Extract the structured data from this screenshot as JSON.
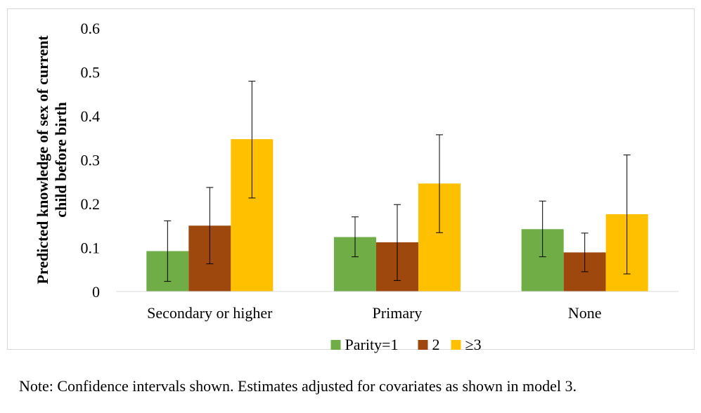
{
  "chart_data": {
    "type": "bar",
    "title": "",
    "xlabel": "",
    "ylabel": [
      "Predicted knowledge of sex of current",
      "child before birth"
    ],
    "ylim": [
      0,
      0.6
    ],
    "yticks": [
      "0",
      "0.1",
      "0.2",
      "0.3",
      "0.4",
      "0.5",
      "0.6"
    ],
    "categories": [
      "Secondary or higher",
      "Primary",
      "None"
    ],
    "series": [
      {
        "name": "Parity=1",
        "color": "#70ad47",
        "values": [
          0.092,
          0.124,
          0.142
        ],
        "lower": [
          0.023,
          0.079,
          0.079
        ],
        "upper": [
          0.161,
          0.17,
          0.206
        ]
      },
      {
        "name": "2",
        "color": "#9e480e",
        "values": [
          0.15,
          0.112,
          0.089
        ],
        "lower": [
          0.063,
          0.025,
          0.045
        ],
        "upper": [
          0.237,
          0.198,
          0.133
        ]
      },
      {
        "name": "≥3",
        "color": "#ffc000",
        "values": [
          0.347,
          0.246,
          0.176
        ],
        "lower": [
          0.213,
          0.134,
          0.04
        ],
        "upper": [
          0.479,
          0.357,
          0.311
        ]
      }
    ],
    "grid": false,
    "error_bars": true,
    "legend_position": "bottom"
  },
  "note": "Note: Confidence intervals shown. Estimates adjusted for covariates as shown in model 3."
}
